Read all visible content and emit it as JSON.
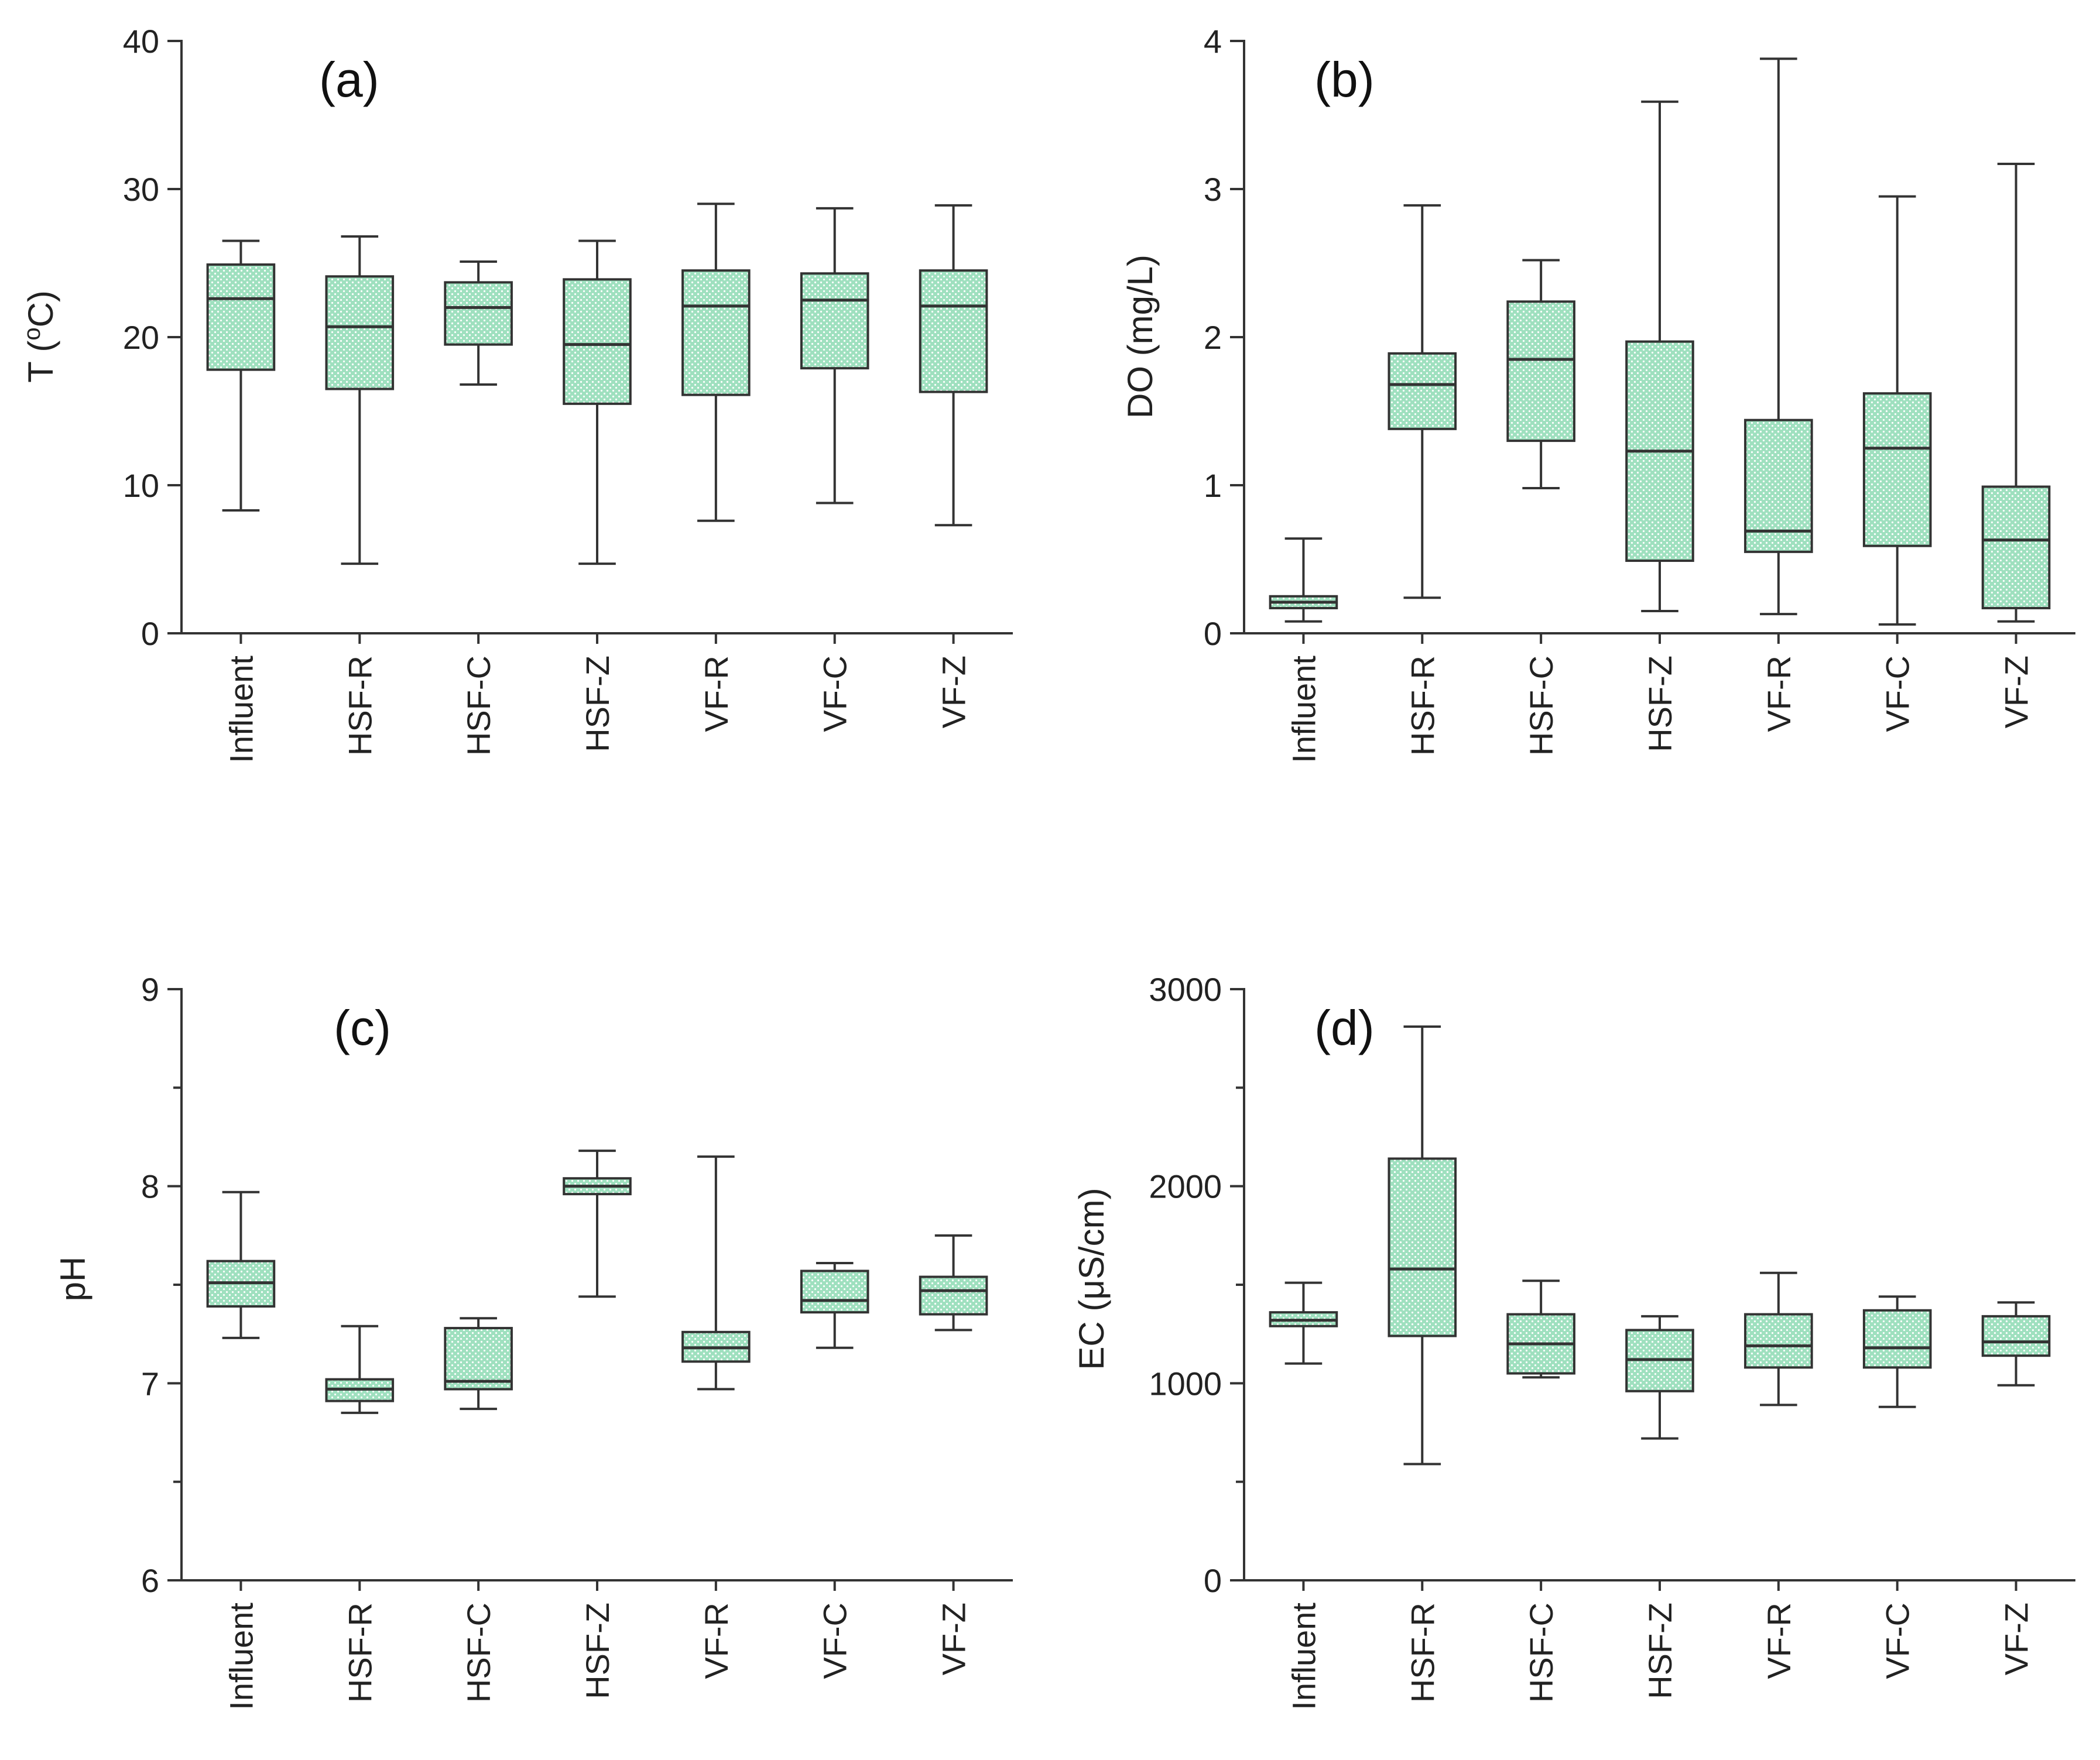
{
  "figure": {
    "box_fill": "#9fe0bf",
    "box_pattern": "#ffffff",
    "stroke": "#333333"
  },
  "chart_data": [
    {
      "type": "box",
      "panel": "(a)",
      "ylabel": "T (",
      "ylabel_sup": "o",
      "ylabel_tail": "C)",
      "ylim": [
        0,
        40
      ],
      "yticks": [
        0,
        10,
        20,
        30,
        40
      ],
      "ytick_labels": [
        "0",
        "10",
        "20",
        "30",
        "40"
      ],
      "minor_ticks": false,
      "categories": [
        "Influent",
        "HSF-R",
        "HSF-C",
        "HSF-Z",
        "VF-R",
        "VF-C",
        "VF-Z"
      ],
      "boxes": [
        {
          "min": 8.3,
          "q1": 17.8,
          "median": 22.6,
          "q3": 24.9,
          "max": 26.5
        },
        {
          "min": 4.7,
          "q1": 16.5,
          "median": 20.7,
          "q3": 24.1,
          "max": 26.8
        },
        {
          "min": 16.8,
          "q1": 19.5,
          "median": 22.0,
          "q3": 23.7,
          "max": 25.1
        },
        {
          "min": 4.7,
          "q1": 15.5,
          "median": 19.5,
          "q3": 23.9,
          "max": 26.5
        },
        {
          "min": 7.6,
          "q1": 16.1,
          "median": 22.1,
          "q3": 24.5,
          "max": 29.0
        },
        {
          "min": 8.8,
          "q1": 17.9,
          "median": 22.5,
          "q3": 24.3,
          "max": 28.7
        },
        {
          "min": 7.3,
          "q1": 16.3,
          "median": 22.1,
          "q3": 24.5,
          "max": 28.9
        }
      ]
    },
    {
      "type": "box",
      "panel": "(b)",
      "ylabel": "DO (mg/L)",
      "ylim": [
        0,
        4
      ],
      "yticks": [
        0,
        1,
        2,
        3,
        4
      ],
      "ytick_labels": [
        "0",
        "1",
        "2",
        "3",
        "4"
      ],
      "minor_ticks": false,
      "categories": [
        "Influent",
        "HSF-R",
        "HSF-C",
        "HSF-Z",
        "VF-R",
        "VF-C",
        "VF-Z"
      ],
      "boxes": [
        {
          "min": 0.08,
          "q1": 0.17,
          "median": 0.21,
          "q3": 0.25,
          "max": 0.64
        },
        {
          "min": 0.24,
          "q1": 1.38,
          "median": 1.68,
          "q3": 1.89,
          "max": 2.89
        },
        {
          "min": 0.98,
          "q1": 1.3,
          "median": 1.85,
          "q3": 2.24,
          "max": 2.52
        },
        {
          "min": 0.15,
          "q1": 0.49,
          "median": 1.23,
          "q3": 1.97,
          "max": 3.59
        },
        {
          "min": 0.13,
          "q1": 0.55,
          "median": 0.69,
          "q3": 1.44,
          "max": 3.88
        },
        {
          "min": 0.06,
          "q1": 0.59,
          "median": 1.25,
          "q3": 1.62,
          "max": 2.95
        },
        {
          "min": 0.08,
          "q1": 0.17,
          "median": 0.63,
          "q3": 0.99,
          "max": 3.17
        }
      ]
    },
    {
      "type": "box",
      "panel": "(c)",
      "ylabel": "pH",
      "ylim": [
        6,
        9
      ],
      "yticks": [
        6,
        7,
        8,
        9
      ],
      "ytick_labels": [
        "6",
        "7",
        "8",
        "9"
      ],
      "minor_ticks": true,
      "categories": [
        "Influent",
        "HSF-R",
        "HSF-C",
        "HSF-Z",
        "VF-R",
        "VF-C",
        "VF-Z"
      ],
      "boxes": [
        {
          "min": 7.23,
          "q1": 7.39,
          "median": 7.51,
          "q3": 7.62,
          "max": 7.97
        },
        {
          "min": 6.85,
          "q1": 6.91,
          "median": 6.97,
          "q3": 7.02,
          "max": 7.29
        },
        {
          "min": 6.87,
          "q1": 6.97,
          "median": 7.01,
          "q3": 7.28,
          "max": 7.33
        },
        {
          "min": 7.44,
          "q1": 7.96,
          "median": 8.0,
          "q3": 8.04,
          "max": 8.18
        },
        {
          "min": 6.97,
          "q1": 7.11,
          "median": 7.18,
          "q3": 7.26,
          "max": 8.15
        },
        {
          "min": 7.18,
          "q1": 7.36,
          "median": 7.42,
          "q3": 7.57,
          "max": 7.61
        },
        {
          "min": 7.27,
          "q1": 7.35,
          "median": 7.47,
          "q3": 7.54,
          "max": 7.75
        }
      ]
    },
    {
      "type": "box",
      "panel": "(d)",
      "ylabel": "EC (μS/cm)",
      "ylim": [
        0,
        3000
      ],
      "yticks": [
        0,
        1000,
        2000,
        3000
      ],
      "ytick_labels": [
        "0",
        "1000",
        "2000",
        "3000"
      ],
      "minor_ticks": true,
      "categories": [
        "Influent",
        "HSF-R",
        "HSF-C",
        "HSF-Z",
        "VF-R",
        "VF-C",
        "VF-Z"
      ],
      "boxes": [
        {
          "min": 1100,
          "q1": 1290,
          "median": 1320,
          "q3": 1360,
          "max": 1510
        },
        {
          "min": 590,
          "q1": 1240,
          "median": 1580,
          "q3": 2140,
          "max": 2810
        },
        {
          "min": 1030,
          "q1": 1050,
          "median": 1200,
          "q3": 1350,
          "max": 1520
        },
        {
          "min": 720,
          "q1": 960,
          "median": 1120,
          "q3": 1270,
          "max": 1340
        },
        {
          "min": 890,
          "q1": 1080,
          "median": 1190,
          "q3": 1350,
          "max": 1560
        },
        {
          "min": 880,
          "q1": 1080,
          "median": 1180,
          "q3": 1370,
          "max": 1440
        },
        {
          "min": 990,
          "q1": 1140,
          "median": 1210,
          "q3": 1340,
          "max": 1410
        }
      ]
    }
  ]
}
